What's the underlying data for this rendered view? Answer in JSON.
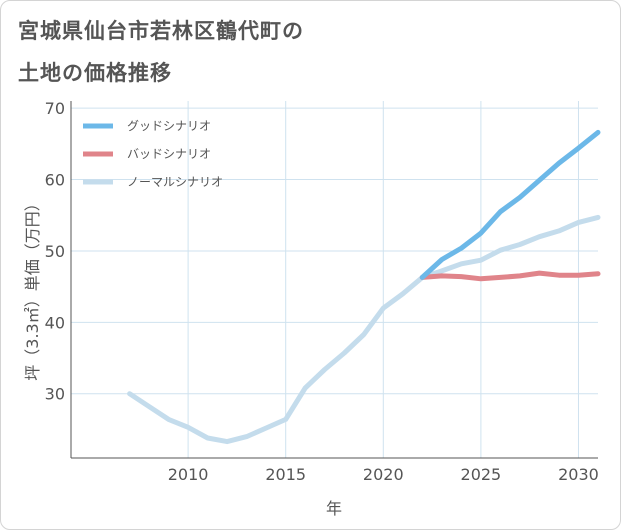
{
  "title_line_1": "宮城県仙台市若林区鶴代町の",
  "title_line_2": "土地の価格推移",
  "chart_data": {
    "type": "line",
    "xlabel": "年",
    "ylabel": "坪（3.3㎡）単価（万円）",
    "xlim": [
      2004,
      2031
    ],
    "ylim": [
      21,
      71
    ],
    "x_ticks": [
      2010,
      2015,
      2020,
      2025,
      2030
    ],
    "y_ticks": [
      30,
      40,
      50,
      60,
      70
    ],
    "grid": true,
    "legend_position": "top-left",
    "series": [
      {
        "name": "グッドシナリオ",
        "color": "#6cb8e8",
        "points": [
          [
            2022,
            46.3
          ],
          [
            2023,
            48.8
          ],
          [
            2024,
            50.4
          ],
          [
            2025,
            52.5
          ],
          [
            2026,
            55.5
          ],
          [
            2027,
            57.5
          ],
          [
            2028,
            59.9
          ],
          [
            2029,
            62.3
          ],
          [
            2030,
            64.4
          ],
          [
            2031,
            66.6
          ]
        ]
      },
      {
        "name": "バッドシナリオ",
        "color": "#e0848a",
        "points": [
          [
            2022,
            46.3
          ],
          [
            2023,
            46.5
          ],
          [
            2024,
            46.4
          ],
          [
            2025,
            46.1
          ],
          [
            2026,
            46.3
          ],
          [
            2027,
            46.5
          ],
          [
            2028,
            46.9
          ],
          [
            2029,
            46.6
          ],
          [
            2030,
            46.6
          ],
          [
            2031,
            46.8
          ]
        ]
      },
      {
        "name": "ノーマルシナリオ",
        "color": "#c4dcec",
        "points": [
          [
            2007,
            30.0
          ],
          [
            2008,
            28.2
          ],
          [
            2009,
            26.4
          ],
          [
            2010,
            25.3
          ],
          [
            2011,
            23.8
          ],
          [
            2012,
            23.3
          ],
          [
            2013,
            24.0
          ],
          [
            2014,
            25.2
          ],
          [
            2015,
            26.4
          ],
          [
            2016,
            30.8
          ],
          [
            2017,
            33.4
          ],
          [
            2018,
            35.7
          ],
          [
            2019,
            38.3
          ],
          [
            2020,
            42.0
          ],
          [
            2021,
            44.0
          ],
          [
            2022,
            46.3
          ],
          [
            2023,
            47.2
          ],
          [
            2024,
            48.2
          ],
          [
            2025,
            48.7
          ],
          [
            2026,
            50.1
          ],
          [
            2027,
            50.9
          ],
          [
            2028,
            52.0
          ],
          [
            2029,
            52.8
          ],
          [
            2030,
            54.0
          ],
          [
            2031,
            54.7
          ]
        ]
      }
    ]
  }
}
